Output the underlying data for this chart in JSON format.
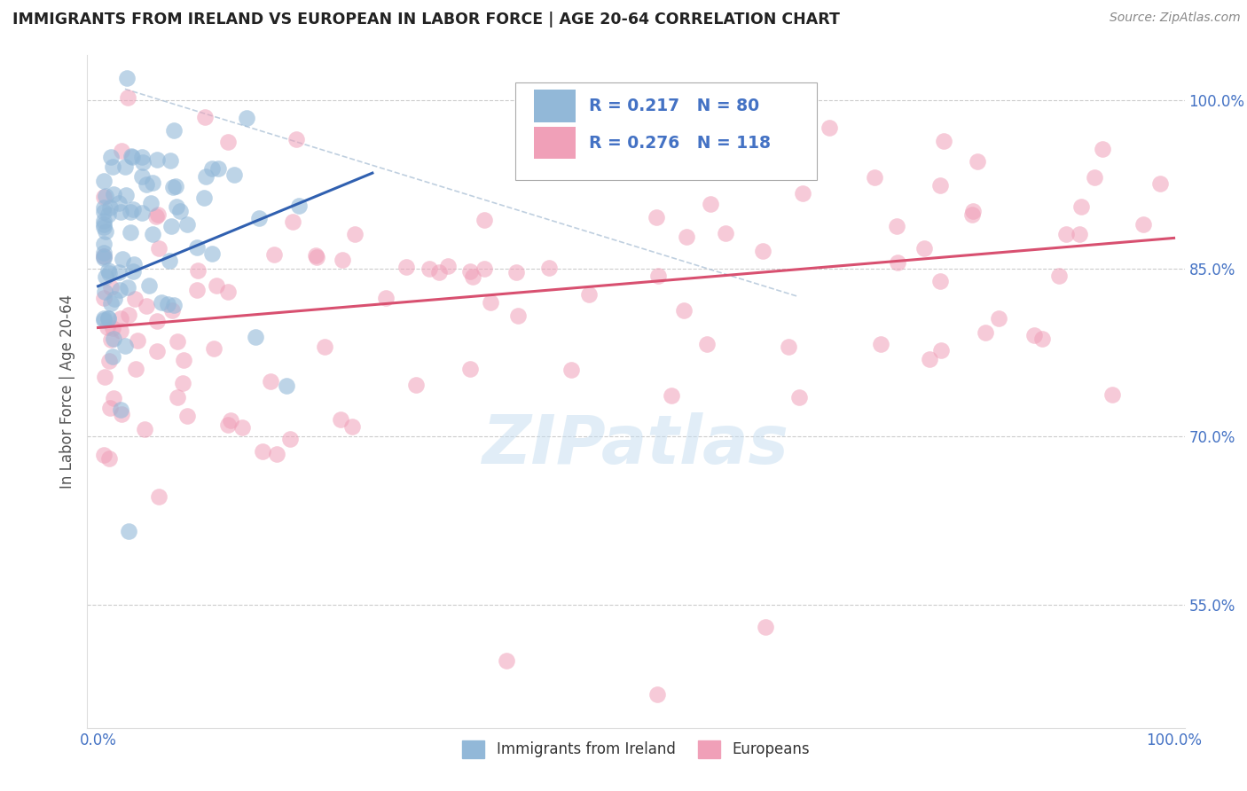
{
  "title": "IMMIGRANTS FROM IRELAND VS EUROPEAN IN LABOR FORCE | AGE 20-64 CORRELATION CHART",
  "source": "Source: ZipAtlas.com",
  "ylabel": "In Labor Force | Age 20-64",
  "xlim": [
    -0.01,
    1.01
  ],
  "ylim": [
    0.44,
    1.04
  ],
  "x_ticks": [
    0.0,
    0.25,
    0.5,
    0.75,
    1.0
  ],
  "x_tick_labels": [
    "0.0%",
    "",
    "",
    "",
    "100.0%"
  ],
  "y_ticks": [
    0.55,
    0.7,
    0.85,
    1.0
  ],
  "y_tick_labels": [
    "55.0%",
    "70.0%",
    "85.0%",
    "100.0%"
  ],
  "ireland_color": "#92b8d8",
  "european_color": "#f0a0b8",
  "trendline_ireland_color": "#3060b0",
  "trendline_european_color": "#d85070",
  "r_ireland": 0.217,
  "n_ireland": 80,
  "r_european": 0.276,
  "n_european": 118,
  "watermark": "ZIPatlas",
  "background_color": "#ffffff",
  "tick_color": "#4472c4",
  "grid_color": "#cccccc",
  "legend_text_color": "#4472c4",
  "title_color": "#222222",
  "source_color": "#888888",
  "ylabel_color": "#555555"
}
